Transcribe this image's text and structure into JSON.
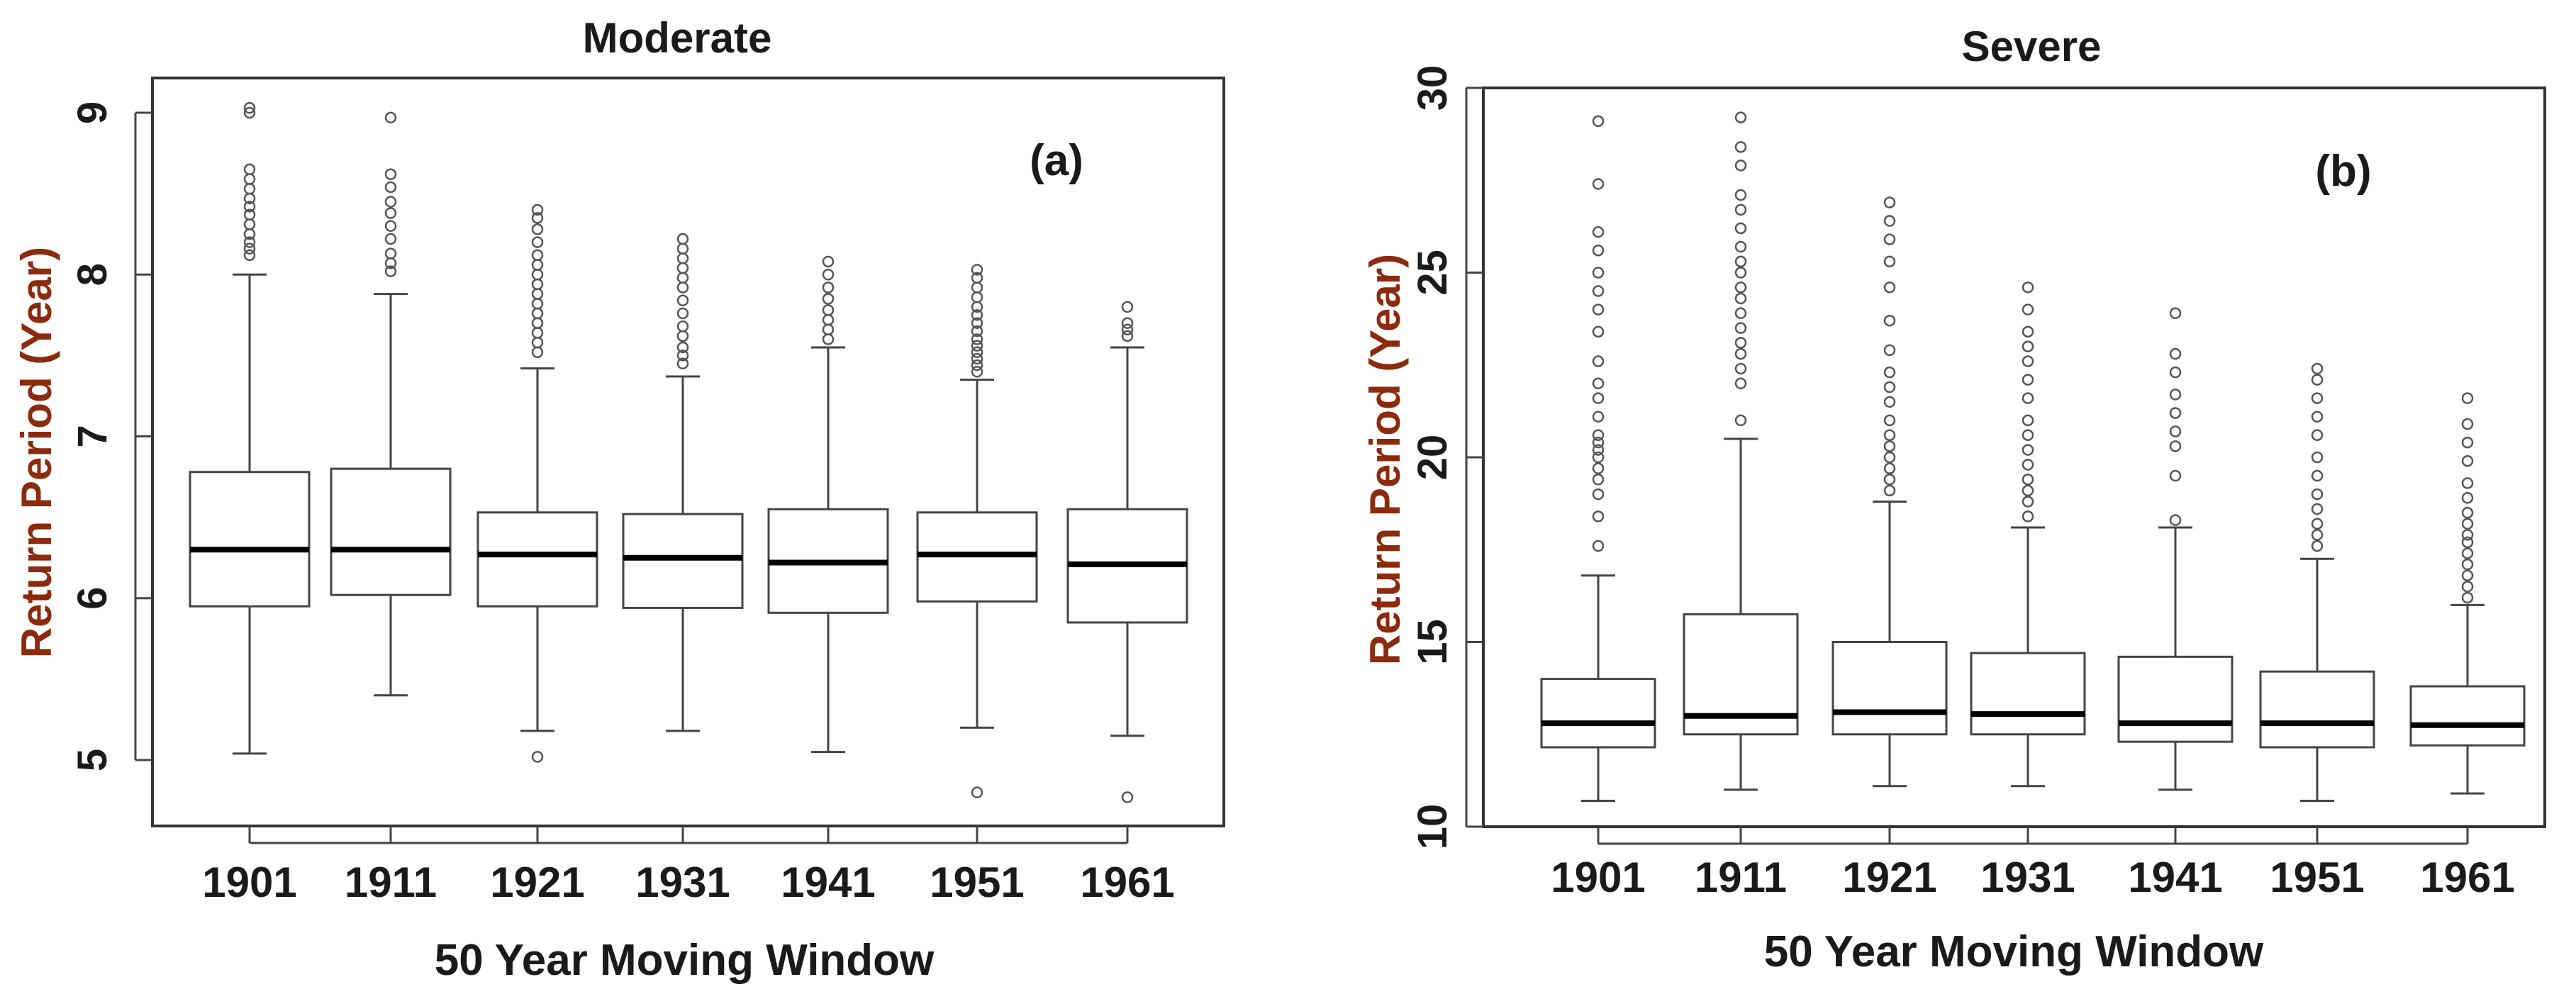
{
  "chart_data": [
    {
      "type": "box",
      "panel_label": "(a)",
      "title": "Moderate",
      "xlabel": "50 Year Moving Window",
      "ylabel": "Return Period (Year)",
      "ylim": [
        4.6,
        9.3
      ],
      "yticks": [
        5,
        6,
        7,
        8,
        9
      ],
      "grid": false,
      "categories": [
        "1901",
        "1911",
        "1921",
        "1931",
        "1941",
        "1951",
        "1961"
      ],
      "boxes": [
        {
          "low": 5.04,
          "q1": 5.95,
          "median": 6.3,
          "q3": 6.78,
          "high": 8.0,
          "outliers": [
            8.12,
            8.16,
            8.2,
            8.25,
            8.31,
            8.37,
            8.42,
            8.47,
            8.53,
            8.59,
            8.65,
            9.0,
            9.03
          ]
        },
        {
          "low": 5.4,
          "q1": 6.02,
          "median": 6.3,
          "q3": 6.8,
          "high": 7.88,
          "outliers": [
            8.02,
            8.07,
            8.13,
            8.22,
            8.3,
            8.38,
            8.45,
            8.54,
            8.62,
            8.97
          ]
        },
        {
          "low": 5.18,
          "q1": 5.95,
          "median": 6.27,
          "q3": 6.53,
          "high": 7.42,
          "outliers": [
            5.02,
            7.52,
            7.58,
            7.64,
            7.7,
            7.76,
            7.82,
            7.88,
            7.94,
            8.0,
            8.06,
            8.12,
            8.2,
            8.28,
            8.35,
            8.4
          ]
        },
        {
          "low": 5.18,
          "q1": 5.94,
          "median": 6.25,
          "q3": 6.52,
          "high": 7.37,
          "outliers": [
            7.45,
            7.5,
            7.55,
            7.62,
            7.68,
            7.76,
            7.84,
            7.92,
            7.98,
            8.04,
            8.1,
            8.16,
            8.22
          ]
        },
        {
          "low": 5.05,
          "q1": 5.91,
          "median": 6.22,
          "q3": 6.55,
          "high": 7.55,
          "outliers": [
            7.6,
            7.66,
            7.72,
            7.78,
            7.85,
            7.92,
            8.0,
            8.08
          ]
        },
        {
          "low": 5.2,
          "q1": 5.98,
          "median": 6.27,
          "q3": 6.53,
          "high": 7.35,
          "outliers": [
            4.8,
            7.4,
            7.44,
            7.48,
            7.52,
            7.56,
            7.6,
            7.65,
            7.7,
            7.75,
            7.8,
            7.86,
            7.92,
            7.98,
            8.03
          ]
        },
        {
          "low": 5.15,
          "q1": 5.85,
          "median": 6.21,
          "q3": 6.55,
          "high": 7.55,
          "outliers": [
            4.77,
            7.62,
            7.66,
            7.7,
            7.8
          ]
        }
      ]
    },
    {
      "type": "box",
      "panel_label": "(b)",
      "title": "Severe",
      "xlabel": "50 Year Moving Window",
      "ylabel": "Return Period (Year)",
      "ylim": [
        10,
        30
      ],
      "yticks": [
        10,
        15,
        20,
        25,
        30
      ],
      "grid": false,
      "categories": [
        "1901",
        "1911",
        "1921",
        "1931",
        "1941",
        "1951",
        "1961"
      ],
      "boxes": [
        {
          "low": 10.7,
          "q1": 12.15,
          "median": 12.8,
          "q3": 14.0,
          "high": 16.8,
          "outliers": [
            17.6,
            18.4,
            19.0,
            19.4,
            19.7,
            20.0,
            20.2,
            20.4,
            20.6,
            21.1,
            21.6,
            22.0,
            22.6,
            23.4,
            24.0,
            24.5,
            25.0,
            25.6,
            26.1,
            27.4,
            29.1
          ]
        },
        {
          "low": 11.0,
          "q1": 12.5,
          "median": 13.0,
          "q3": 15.75,
          "high": 20.5,
          "outliers": [
            21.0,
            22.0,
            22.4,
            22.8,
            23.1,
            23.5,
            23.9,
            24.3,
            24.6,
            25.0,
            25.3,
            25.7,
            26.2,
            26.7,
            27.1,
            27.9,
            28.4,
            29.2
          ]
        },
        {
          "low": 11.1,
          "q1": 12.5,
          "median": 13.1,
          "q3": 15.0,
          "high": 18.8,
          "outliers": [
            19.1,
            19.4,
            19.7,
            20.0,
            20.3,
            20.6,
            21.0,
            21.5,
            21.9,
            22.3,
            22.9,
            23.7,
            24.6,
            25.3,
            25.9,
            26.4,
            26.9
          ]
        },
        {
          "low": 11.1,
          "q1": 12.5,
          "median": 13.05,
          "q3": 14.7,
          "high": 18.1,
          "outliers": [
            18.4,
            18.8,
            19.1,
            19.4,
            19.8,
            20.2,
            20.6,
            21.0,
            21.6,
            22.1,
            22.6,
            23.0,
            23.4,
            24.0,
            24.6
          ]
        },
        {
          "low": 11.0,
          "q1": 12.3,
          "median": 12.8,
          "q3": 14.6,
          "high": 18.1,
          "outliers": [
            18.3,
            19.5,
            20.3,
            20.7,
            21.2,
            21.7,
            22.3,
            22.8,
            23.9
          ]
        },
        {
          "low": 10.7,
          "q1": 12.15,
          "median": 12.8,
          "q3": 14.2,
          "high": 17.25,
          "outliers": [
            17.6,
            17.9,
            18.2,
            18.6,
            19.0,
            19.5,
            20.0,
            20.6,
            21.1,
            21.6,
            22.1,
            22.4
          ]
        },
        {
          "low": 10.9,
          "q1": 12.2,
          "median": 12.75,
          "q3": 13.8,
          "high": 16.0,
          "outliers": [
            16.2,
            16.5,
            16.8,
            17.1,
            17.4,
            17.7,
            17.9,
            18.2,
            18.5,
            18.9,
            19.3,
            19.9,
            20.4,
            20.9,
            21.6
          ]
        }
      ]
    }
  ]
}
